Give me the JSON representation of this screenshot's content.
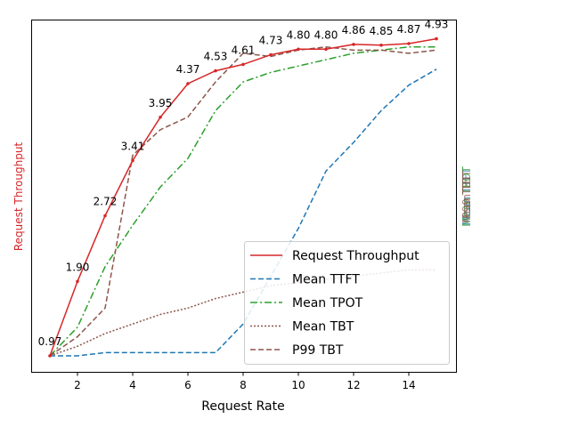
{
  "chart_data": {
    "type": "line",
    "xlabel": "Request Rate",
    "ylabel": "Request Throughput",
    "y2labels": [
      "Mean TTFT",
      "Mean TPOT",
      "Mean TBT",
      "P99 TBT"
    ],
    "xlim": [
      0.4,
      15.7
    ],
    "xticks": [
      "2",
      "4",
      "6",
      "8",
      "10",
      "12",
      "14"
    ],
    "legend_position": "lower-right",
    "grid": false,
    "x": [
      1,
      2,
      3,
      4,
      5,
      6,
      7,
      8,
      9,
      10,
      11,
      12,
      13,
      14,
      15
    ],
    "series": [
      {
        "name": "Request Throughput",
        "color": "#d62728",
        "style": "solid",
        "marker": "point",
        "values": [
          0.97,
          1.9,
          2.72,
          3.41,
          3.95,
          4.37,
          4.53,
          4.61,
          4.73,
          4.8,
          4.8,
          4.86,
          4.85,
          4.87,
          4.93
        ],
        "labels": [
          "0.97",
          "1.90",
          "2.72",
          "3.41",
          "3.95",
          "4.37",
          "4.53",
          "4.61",
          "4.73",
          "4.80",
          "4.80",
          "4.86",
          "4.85",
          "4.87",
          "4.93"
        ]
      },
      {
        "name": "Mean TTFT",
        "color": "#1f77b4",
        "style": "dashed",
        "values": [
          0.0,
          0.0,
          0.01,
          0.01,
          0.01,
          0.01,
          0.01,
          0.1,
          0.25,
          0.4,
          0.58,
          0.67,
          0.77,
          0.85,
          0.9
        ]
      },
      {
        "name": "Mean TPOT",
        "color": "#2ca02c",
        "style": "dashdot",
        "values": [
          0.0,
          0.09,
          0.28,
          0.41,
          0.53,
          0.62,
          0.77,
          0.86,
          0.89,
          0.91,
          0.93,
          0.95,
          0.96,
          0.97,
          0.97
        ]
      },
      {
        "name": "Mean TBT",
        "color": "#8c564b",
        "style": "dotted",
        "values": [
          0.0,
          0.03,
          0.07,
          0.1,
          0.13,
          0.15,
          0.18,
          0.2,
          0.22,
          0.23,
          0.24,
          0.25,
          0.26,
          0.27,
          0.27
        ]
      },
      {
        "name": "P99 TBT",
        "color": "#8c564b",
        "style": "dashed",
        "values": [
          0.0,
          0.06,
          0.15,
          0.63,
          0.71,
          0.75,
          0.86,
          0.95,
          0.94,
          0.96,
          0.97,
          0.96,
          0.96,
          0.95,
          0.96
        ]
      }
    ]
  }
}
